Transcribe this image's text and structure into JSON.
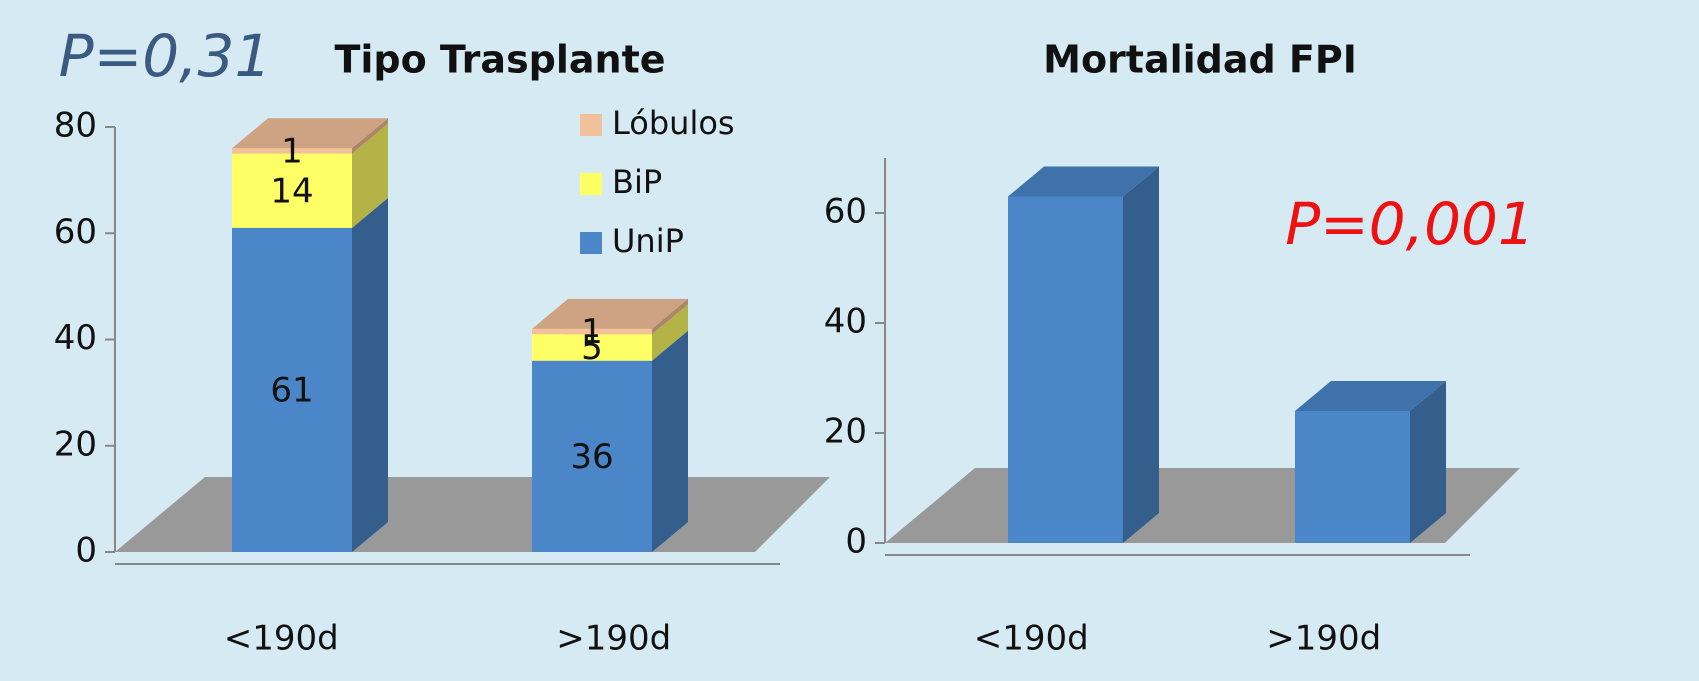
{
  "chart_data": [
    {
      "type": "stacked_bar",
      "title": "Tipo Trasplante",
      "annotation": "P=0,31",
      "annotation_color": "#3b5a80",
      "categories": [
        "<190d",
        ">190d"
      ],
      "series": [
        {
          "name": "UniP",
          "color": "#4a86c8",
          "values": [
            61,
            36
          ]
        },
        {
          "name": "BiP",
          "color": "#ffff66",
          "values": [
            14,
            5
          ]
        },
        {
          "name": "Lóbulos",
          "color": "#f2c09a",
          "values": [
            1,
            1
          ]
        }
      ],
      "ylim": [
        0,
        80
      ],
      "yticks": [
        0,
        20,
        40,
        60,
        80
      ]
    },
    {
      "type": "bar",
      "title": "Mortalidad FPI",
      "annotation": "P=0,001",
      "annotation_color": "#ee1111",
      "categories": [
        "<190d",
        ">190d"
      ],
      "values": [
        63,
        24
      ],
      "color": "#4a86c8",
      "ylim": [
        0,
        70
      ],
      "yticks": [
        0,
        20,
        40,
        60
      ]
    }
  ]
}
